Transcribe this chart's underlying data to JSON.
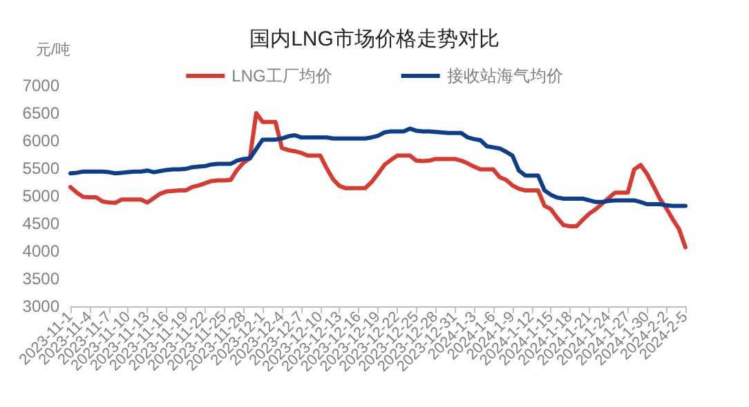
{
  "chart_data": {
    "type": "line",
    "title": "国内LNG市场价格走势对比",
    "ylabel": "元/吨",
    "categories": [
      "2023-11-1",
      null,
      null,
      "2023-11-4",
      null,
      null,
      "2023-11-7",
      null,
      null,
      "2023-11-10",
      null,
      null,
      "2023-11-13",
      null,
      null,
      "2023-11-16",
      null,
      null,
      "2023-11-19",
      null,
      null,
      "2023-11-22",
      null,
      null,
      "2023-11-25",
      null,
      null,
      "2023-11-28",
      null,
      null,
      "2023-12-1",
      null,
      null,
      "2023-12-4",
      null,
      null,
      "2023-12-7",
      null,
      null,
      "2023-12-10",
      null,
      null,
      "2023-12-13",
      null,
      null,
      "2023-12-16",
      null,
      null,
      "2023-12-19",
      null,
      null,
      "2023-12-22",
      null,
      null,
      "2023-12-25",
      null,
      null,
      "2023-12-28",
      null,
      null,
      "2023-12-31",
      null,
      null,
      "2024-1-3",
      null,
      null,
      "2024-1-6",
      null,
      null,
      "2024-1-9",
      null,
      null,
      "2024-1-12",
      null,
      null,
      "2024-1-15",
      null,
      null,
      "2024-1-18",
      null,
      null,
      "2024-1-21",
      null,
      null,
      "2024-1-24",
      null,
      null,
      "2024-1-27",
      null,
      null,
      "2024-1-30",
      null,
      null,
      "2024-2-2",
      null,
      null,
      "2024-2-5"
    ],
    "series": [
      {
        "name": "LNG工厂均价",
        "color": "#d83a30",
        "values": [
          5160,
          5060,
          4980,
          4975,
          4975,
          4900,
          4880,
          4875,
          4935,
          4935,
          4935,
          4935,
          4880,
          4960,
          5040,
          5080,
          5090,
          5100,
          5100,
          5160,
          5190,
          5230,
          5270,
          5280,
          5280,
          5290,
          5470,
          5600,
          5680,
          6500,
          6340,
          6340,
          6340,
          5870,
          5830,
          5810,
          5780,
          5730,
          5730,
          5730,
          5500,
          5300,
          5180,
          5140,
          5140,
          5140,
          5140,
          5250,
          5400,
          5560,
          5650,
          5730,
          5730,
          5730,
          5640,
          5630,
          5640,
          5670,
          5670,
          5670,
          5670,
          5640,
          5590,
          5530,
          5480,
          5480,
          5480,
          5340,
          5290,
          5190,
          5130,
          5100,
          5100,
          5100,
          4820,
          4760,
          4600,
          4470,
          4450,
          4450,
          4570,
          4680,
          4760,
          4860,
          4960,
          5060,
          5060,
          5060,
          5480,
          5560,
          5400,
          5180,
          4950,
          4780,
          4580,
          4400,
          4070
        ]
      },
      {
        "name": "接收站海气均价",
        "color": "#0c3e8c",
        "values": [
          5410,
          5420,
          5440,
          5440,
          5440,
          5440,
          5430,
          5410,
          5420,
          5430,
          5440,
          5440,
          5460,
          5430,
          5450,
          5470,
          5480,
          5480,
          5490,
          5520,
          5530,
          5540,
          5570,
          5580,
          5580,
          5580,
          5640,
          5670,
          5680,
          5850,
          6020,
          6020,
          6020,
          6040,
          6080,
          6100,
          6060,
          6060,
          6060,
          6060,
          6060,
          6040,
          6040,
          6040,
          6040,
          6040,
          6040,
          6060,
          6090,
          6150,
          6170,
          6170,
          6170,
          6220,
          6180,
          6170,
          6170,
          6160,
          6150,
          6140,
          6140,
          6140,
          6060,
          6030,
          6010,
          5900,
          5880,
          5860,
          5800,
          5730,
          5460,
          5370,
          5370,
          5370,
          5100,
          5020,
          4970,
          4950,
          4950,
          4950,
          4950,
          4920,
          4890,
          4890,
          4910,
          4920,
          4920,
          4920,
          4920,
          4890,
          4850,
          4850,
          4850,
          4830,
          4820,
          4820,
          4820
        ]
      }
    ],
    "ylim": [
      3000,
      7000
    ],
    "yticks": [
      3000,
      3500,
      4000,
      4500,
      5000,
      5500,
      6000,
      6500,
      7000
    ],
    "grid": false,
    "legend": "top",
    "marker": "none",
    "line_style": "solid"
  }
}
